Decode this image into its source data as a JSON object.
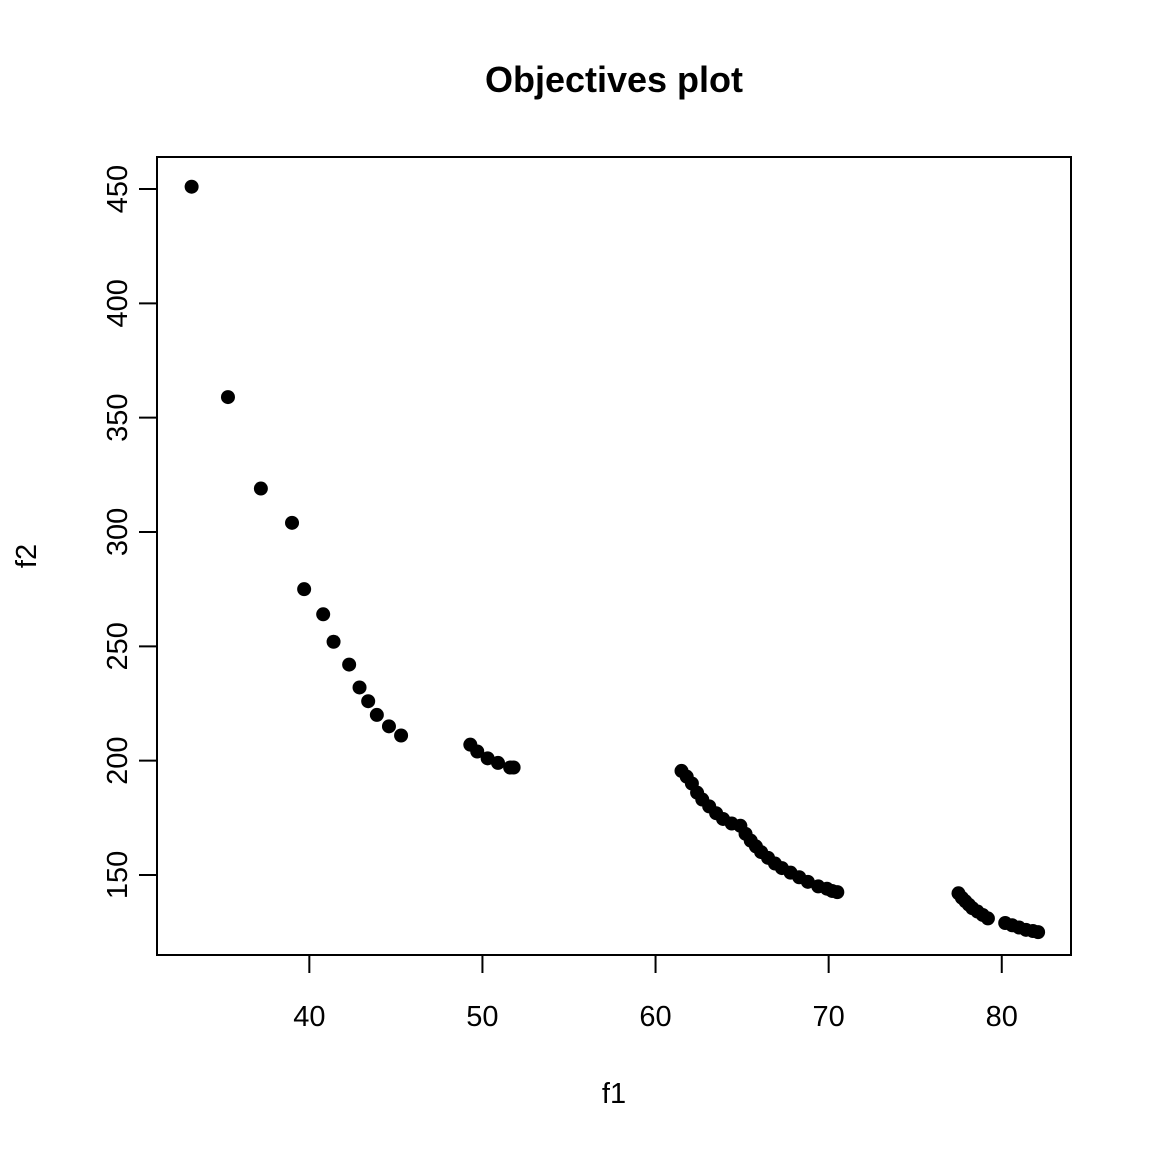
{
  "chart_data": {
    "type": "scatter",
    "title": "Objectives plot",
    "xlabel": "f1",
    "ylabel": "f2",
    "xlim": [
      31.2,
      84.0
    ],
    "ylim": [
      115.0,
      464.0
    ],
    "x_ticks": [
      40,
      50,
      60,
      70,
      80
    ],
    "y_ticks": [
      150,
      200,
      250,
      300,
      350,
      400,
      450
    ],
    "grid": false,
    "legend": "none",
    "marker_color": "#000000",
    "points": [
      [
        33.2,
        451
      ],
      [
        35.3,
        359
      ],
      [
        37.2,
        319
      ],
      [
        39.0,
        304
      ],
      [
        39.7,
        275
      ],
      [
        40.8,
        264
      ],
      [
        41.4,
        252
      ],
      [
        42.3,
        242
      ],
      [
        42.9,
        232
      ],
      [
        43.4,
        226
      ],
      [
        43.9,
        220
      ],
      [
        44.6,
        215
      ],
      [
        45.3,
        211
      ],
      [
        49.3,
        207
      ],
      [
        49.7,
        204
      ],
      [
        50.3,
        201
      ],
      [
        50.9,
        199
      ],
      [
        51.6,
        197
      ],
      [
        51.8,
        197
      ],
      [
        61.5,
        195.5
      ],
      [
        61.8,
        193
      ],
      [
        62.1,
        190
      ],
      [
        62.4,
        186
      ],
      [
        62.7,
        183
      ],
      [
        63.1,
        180
      ],
      [
        63.5,
        177
      ],
      [
        63.9,
        174.5
      ],
      [
        64.4,
        172.5
      ],
      [
        64.9,
        171.5
      ],
      [
        65.2,
        168
      ],
      [
        65.5,
        165
      ],
      [
        65.8,
        162.5
      ],
      [
        66.1,
        160
      ],
      [
        66.5,
        157.5
      ],
      [
        66.9,
        155
      ],
      [
        67.3,
        153
      ],
      [
        67.8,
        151
      ],
      [
        68.3,
        149
      ],
      [
        68.8,
        147
      ],
      [
        69.4,
        145
      ],
      [
        69.9,
        144
      ],
      [
        70.2,
        143
      ],
      [
        70.5,
        142.5
      ],
      [
        77.5,
        142
      ],
      [
        77.7,
        140
      ],
      [
        77.9,
        138.5
      ],
      [
        78.1,
        137
      ],
      [
        78.3,
        135.5
      ],
      [
        78.6,
        134
      ],
      [
        78.9,
        132.5
      ],
      [
        79.2,
        131
      ],
      [
        80.2,
        129
      ],
      [
        80.6,
        128
      ],
      [
        81.0,
        127
      ],
      [
        81.4,
        126
      ],
      [
        81.8,
        125.5
      ],
      [
        82.1,
        125
      ]
    ]
  }
}
